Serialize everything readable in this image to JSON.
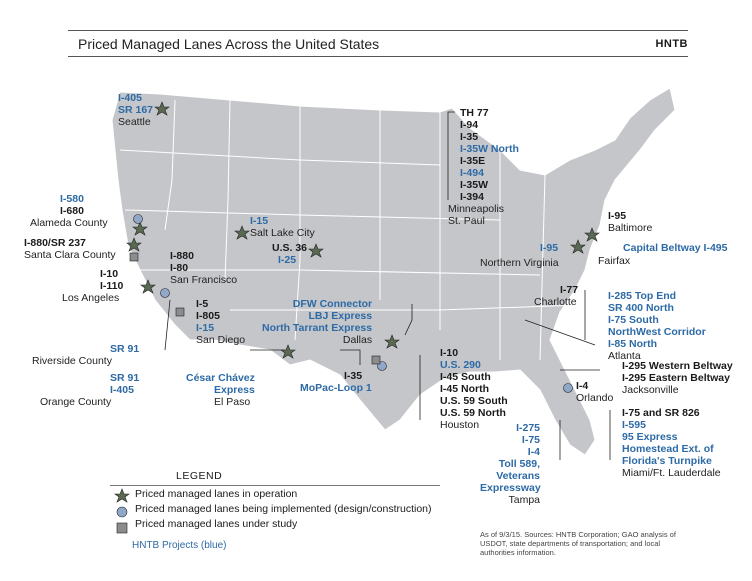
{
  "header": {
    "title": "Priced Managed Lanes Across the United States",
    "brand": "HNTB"
  },
  "colors": {
    "map": "#c4c6c9",
    "state_line": "#ffffff",
    "operation": "#5a6a52",
    "implemented": "#8fa7c8",
    "study": "#8a8c8e",
    "hntb_blue": "#2d6aa6"
  },
  "labels": {
    "seattle": [
      "I-405",
      "SR 167",
      "Seattle"
    ],
    "alameda": [
      "I-580",
      "I-680",
      "Alameda County"
    ],
    "santa_clara": [
      "I-880/SR 237",
      "Santa Clara County"
    ],
    "sf": [
      "I-880",
      "I-80",
      "San Francisco"
    ],
    "la": [
      "I-10",
      "I-110",
      "Los Angeles"
    ],
    "sd": [
      "I-5",
      "I-805",
      "I-15",
      "San Diego"
    ],
    "riverside": [
      "SR 91",
      "Riverside County"
    ],
    "orange": [
      "SR 91",
      "I-405",
      "Orange County"
    ],
    "slc": [
      "I-15",
      "Salt Lake City"
    ],
    "denver": [
      "U.S. 36",
      "I-25"
    ],
    "dallas": [
      "DFW Connector",
      "LBJ Express",
      "North Tarrant Express",
      "Dallas"
    ],
    "elpaso": [
      "César Chávez",
      "Express",
      "El Paso"
    ],
    "austin": [
      "I-35",
      "MoPac-Loop 1"
    ],
    "houston": [
      "I-10",
      "U.S. 290",
      "I-45 South",
      "I-45 North",
      "U.S. 59 South",
      "U.S. 59 North",
      "Houston"
    ],
    "minneapolis": [
      "TH 77",
      "I-94",
      "I-35",
      "I-35W North",
      "I-35E",
      "I-494",
      "I-35W",
      "I-394",
      "Minneapolis",
      "St. Paul"
    ],
    "baltimore": [
      "I-95",
      "Baltimore"
    ],
    "nova": [
      "I-95",
      "Capital Beltway I-495",
      "Northern Virginia",
      "Fairfax"
    ],
    "charlotte": [
      "I-77",
      "Charlotte"
    ],
    "atlanta": [
      "I-285 Top End",
      "SR 400 North",
      "I-75 South",
      "NorthWest Corridor",
      "I-85 North",
      "Atlanta"
    ],
    "jacksonville": [
      "I-295 Western Beltway",
      "I-295 Eastern Beltway",
      "Jacksonville"
    ],
    "orlando": [
      "I-4",
      "Orlando"
    ],
    "tampa": [
      "I-275",
      "I-75",
      "I-4",
      "Toll 589,",
      "Veterans",
      "Expressway",
      "Tampa"
    ],
    "miami": [
      "I-75 and SR 826",
      "I-595",
      "95 Express",
      "Homestead Ext. of",
      "Florida's Turnpike",
      "Miami/Ft. Lauderdale"
    ]
  },
  "legend": {
    "title": "LEGEND",
    "items": [
      "Priced managed lanes in operation",
      "Priced managed lanes being implemented (design/construction)",
      "Priced managed lanes under study"
    ],
    "hntb_projects": "HNTB Projects (blue)"
  },
  "note": "As of 9/3/15. Sources: HNTB Corporation; GAO analysis of USDOT, state departments of transportation; and local authorities information."
}
